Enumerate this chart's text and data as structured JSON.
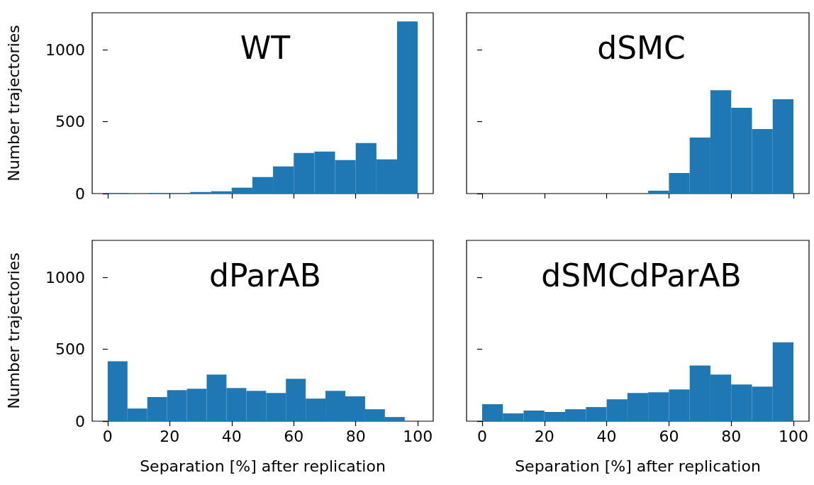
{
  "chart_data": [
    {
      "type": "histogram",
      "title": "WT",
      "ylabel": "Number trajectories",
      "tick_labels": "y",
      "color": "#1f77b4",
      "bins": [
        0,
        6.67,
        13.33,
        20,
        26.67,
        33.33,
        40,
        46.67,
        53.33,
        60,
        66.67,
        73.33,
        80,
        86.67,
        93.33,
        100
      ],
      "values": [
        5,
        0,
        5,
        5,
        11,
        16,
        41,
        115,
        189,
        282,
        292,
        233,
        351,
        238,
        1197
      ],
      "xlim": [
        -5,
        105
      ],
      "xticks": [
        0,
        20,
        40,
        60,
        80,
        100
      ],
      "ylim": [
        0,
        1257
      ],
      "yticks": [
        0,
        500,
        1000
      ]
    },
    {
      "type": "histogram",
      "title": "dSMC",
      "tick_labels": false,
      "color": "#1f77b4",
      "bins": [
        0,
        6.67,
        13.33,
        20,
        26.67,
        33.33,
        40,
        46.67,
        53.33,
        60,
        66.67,
        73.33,
        80,
        86.67,
        93.33,
        100
      ],
      "values": [
        0,
        0,
        0,
        0,
        0,
        0,
        0,
        0,
        20,
        143,
        389,
        719,
        596,
        448,
        655
      ],
      "xlim": [
        -5,
        105
      ],
      "xticks": [
        0,
        20,
        40,
        60,
        80,
        100
      ],
      "ylim": [
        0,
        1257
      ],
      "yticks": [
        0,
        500,
        1000
      ]
    },
    {
      "type": "histogram",
      "title": "dParAB",
      "xlabel": "Separation [%] after replication",
      "ylabel": "Number trajectories",
      "color": "#1f77b4",
      "bins": [
        0,
        6.39,
        12.77,
        19.16,
        25.55,
        31.93,
        38.32,
        44.71,
        51.09,
        57.48,
        63.87,
        70.25,
        76.64,
        83.03,
        89.41,
        95.8
      ],
      "values": [
        417,
        88,
        167,
        216,
        225,
        324,
        230,
        211,
        196,
        294,
        157,
        211,
        172,
        83,
        29
      ],
      "xlim": [
        -5,
        105
      ],
      "xticks": [
        0,
        20,
        40,
        60,
        80,
        100
      ],
      "ylim": [
        0,
        1257
      ],
      "yticks": [
        0,
        500,
        1000
      ]
    },
    {
      "type": "histogram",
      "title": "dSMCdParAB",
      "xlabel": "Separation [%] after replication",
      "tick_labels": "x",
      "color": "#1f77b4",
      "bins": [
        0,
        6.67,
        13.33,
        20,
        26.67,
        33.33,
        40,
        46.67,
        53.33,
        60,
        66.67,
        73.33,
        80,
        86.67,
        93.33,
        100
      ],
      "values": [
        118,
        54,
        74,
        64,
        83,
        98,
        152,
        196,
        201,
        221,
        387,
        324,
        255,
        240,
        549
      ],
      "xlim": [
        -5,
        105
      ],
      "xticks": [
        0,
        20,
        40,
        60,
        80,
        100
      ],
      "ylim": [
        0,
        1257
      ],
      "yticks": [
        0,
        500,
        1000
      ]
    }
  ]
}
